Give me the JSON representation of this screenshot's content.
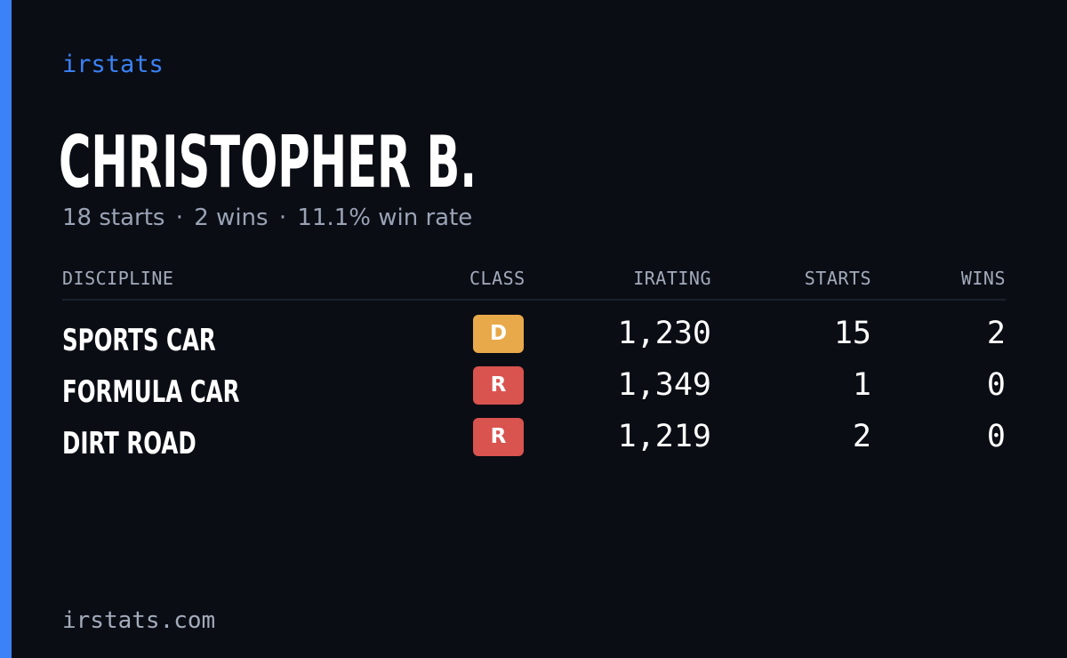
{
  "brand": "irstats",
  "player": {
    "name": "CHRISTOPHER B.",
    "summary": {
      "starts": "18 starts",
      "wins": "2 wins",
      "win_rate": "11.1% win rate",
      "separator": "·"
    }
  },
  "table": {
    "headers": {
      "discipline": "DISCIPLINE",
      "class": "CLASS",
      "irating": "IRATING",
      "starts": "STARTS",
      "wins": "WINS"
    },
    "rows": [
      {
        "discipline": "SPORTS CAR",
        "class": "D",
        "class_color": "#e8a94a",
        "irating": "1,230",
        "starts": "15",
        "wins": "2"
      },
      {
        "discipline": "FORMULA CAR",
        "class": "R",
        "class_color": "#d9534f",
        "irating": "1,349",
        "starts": "1",
        "wins": "0"
      },
      {
        "discipline": "DIRT ROAD",
        "class": "R",
        "class_color": "#d9534f",
        "irating": "1,219",
        "starts": "2",
        "wins": "0"
      }
    ]
  },
  "footer": "irstats.com",
  "colors": {
    "accent": "#3b82f6",
    "background": "#0a0d14",
    "muted_text": "#9aa3b5"
  }
}
